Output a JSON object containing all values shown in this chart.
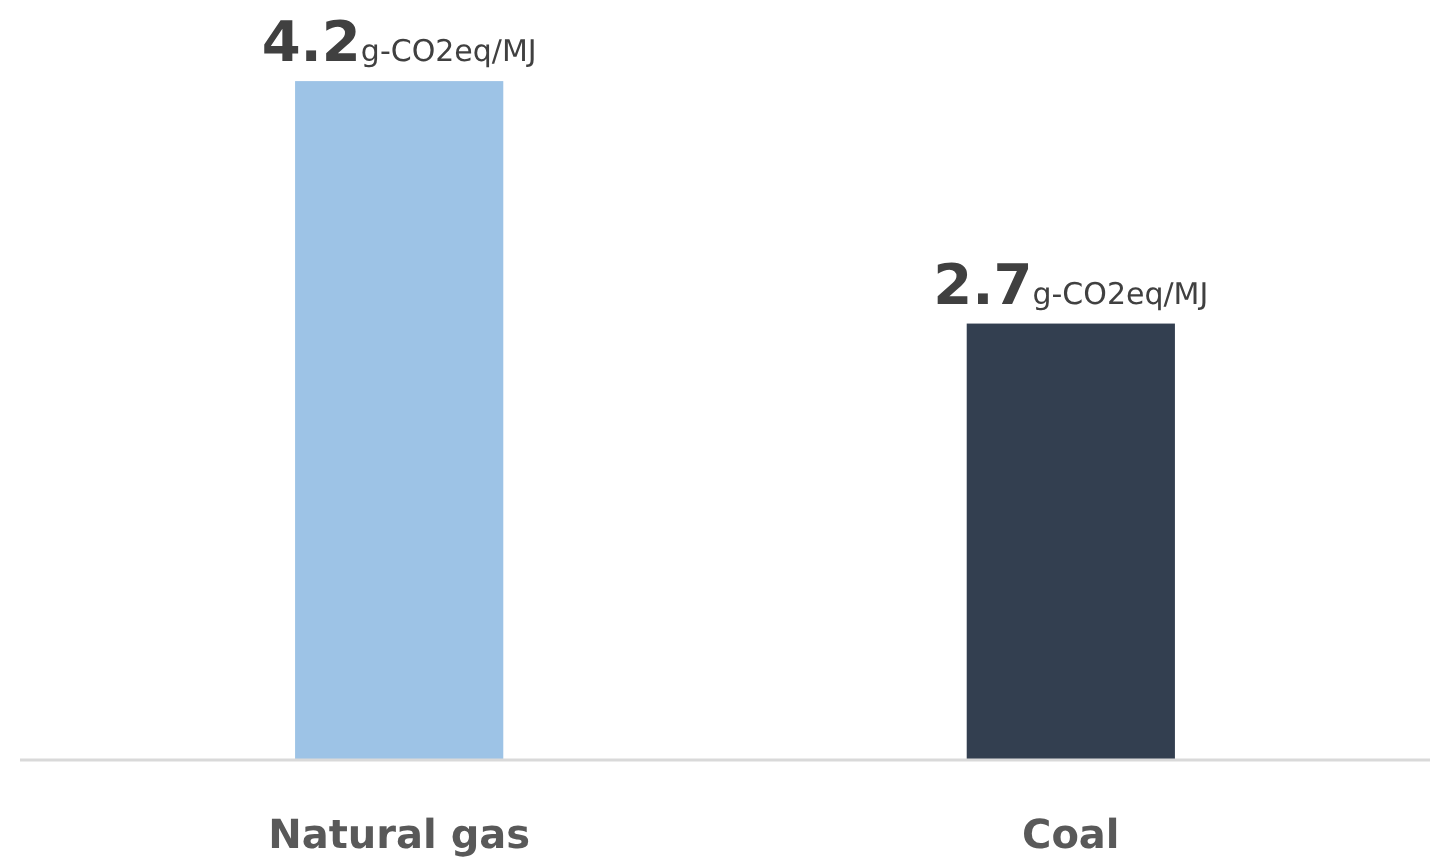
{
  "chart_data": {
    "type": "bar",
    "categories": [
      "Natural gas",
      "Coal"
    ],
    "values": [
      4.2,
      2.7
    ],
    "colors": [
      "#9dc3e6",
      "#333f50"
    ],
    "value_labels": [
      "4.2g-CO2eq/MJ",
      "2.7g-CO2eq/MJ"
    ]
  }
}
